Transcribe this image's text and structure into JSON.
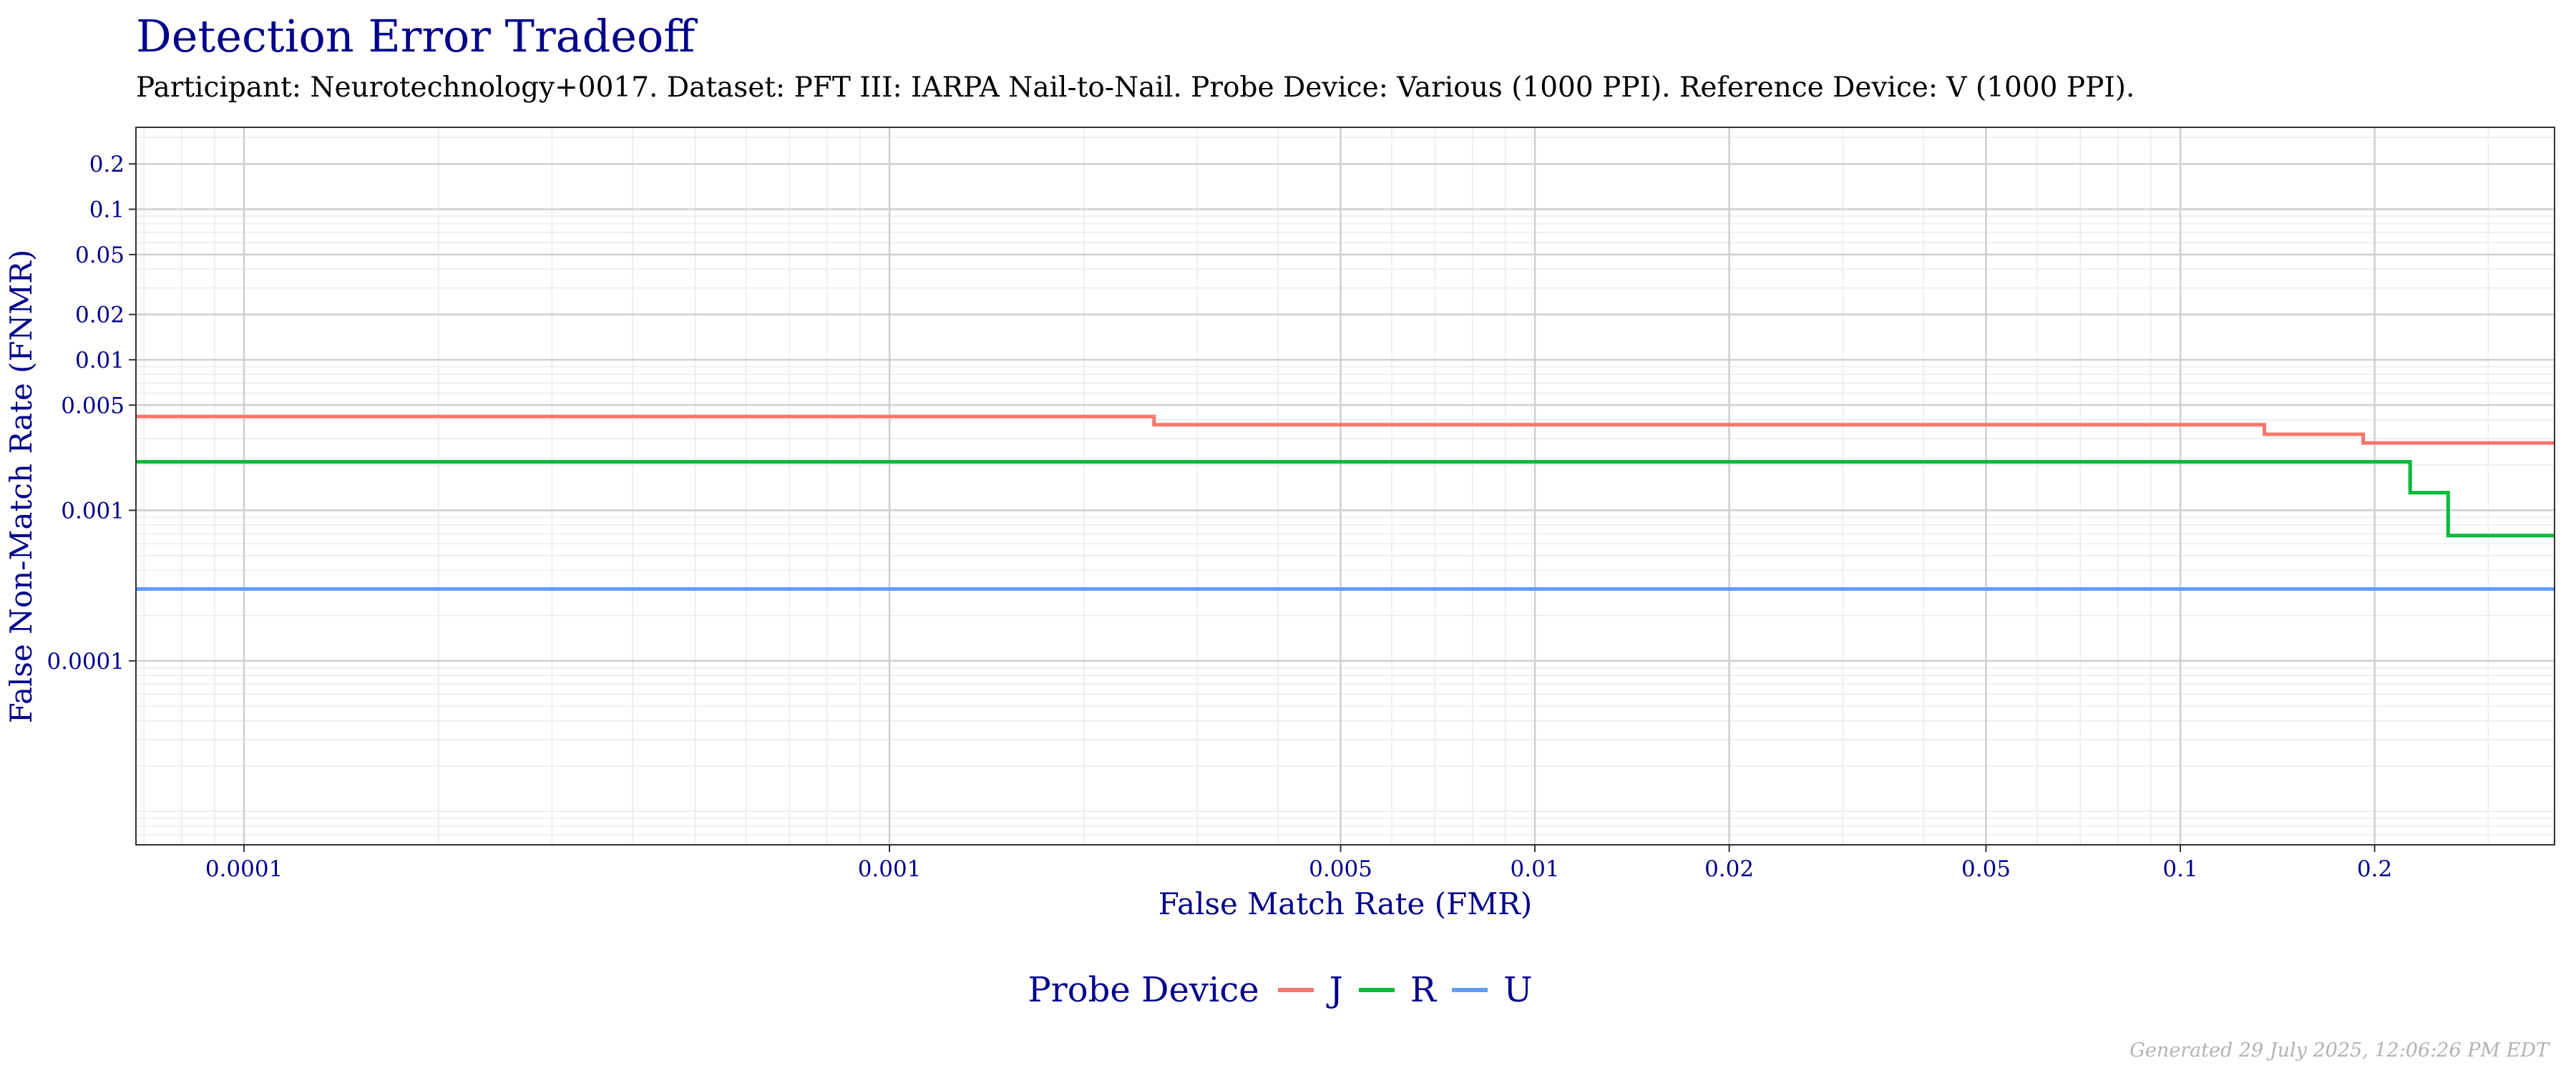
{
  "title": "Detection Error Tradeoff",
  "subtitle": "Participant: Neurotechnology+0017. Dataset: PFT III: IARPA Nail-to-Nail. Probe Device: Various (1000 PPI). Reference Device: V (1000 PPI).",
  "footer": "Generated 29 July 2025, 12:06:26 PM EDT",
  "legend": {
    "title": "Probe Device"
  },
  "chart_data": {
    "type": "line",
    "title": "Detection Error Tradeoff",
    "xlabel": "False Match Rate (FMR)",
    "ylabel": "False Non-Match Rate (FNMR)",
    "x_scale": "log",
    "y_scale": "log",
    "xlim": [
      6.8e-05,
      0.38
    ],
    "ylim": [
      6e-06,
      0.35
    ],
    "x_ticks": [
      {
        "value": 0.0001,
        "label": "0.0001"
      },
      {
        "value": 0.001,
        "label": "0.001"
      },
      {
        "value": 0.005,
        "label": "0.005"
      },
      {
        "value": 0.01,
        "label": "0.01"
      },
      {
        "value": 0.02,
        "label": "0.02"
      },
      {
        "value": 0.05,
        "label": "0.05"
      },
      {
        "value": 0.1,
        "label": "0.1"
      },
      {
        "value": 0.2,
        "label": "0.2"
      }
    ],
    "y_ticks": [
      {
        "value": 0.0001,
        "label": "0.0001"
      },
      {
        "value": 0.001,
        "label": "0.001"
      },
      {
        "value": 0.005,
        "label": "0.005"
      },
      {
        "value": 0.01,
        "label": "0.01"
      },
      {
        "value": 0.02,
        "label": "0.02"
      },
      {
        "value": 0.05,
        "label": "0.05"
      },
      {
        "value": 0.1,
        "label": "0.1"
      },
      {
        "value": 0.2,
        "label": "0.2"
      }
    ],
    "grid": true,
    "legend_position": "bottom",
    "series": [
      {
        "name": "J",
        "color": "#f8766d",
        "x": [
          6.8e-05,
          0.00257,
          0.00257,
          0.135,
          0.135,
          0.192,
          0.192,
          0.38
        ],
        "y": [
          0.0042,
          0.0042,
          0.0037,
          0.0037,
          0.0032,
          0.0032,
          0.0028,
          0.0028
        ]
      },
      {
        "name": "R",
        "color": "#00ba38",
        "x": [
          6.8e-05,
          0.227,
          0.227,
          0.26,
          0.26,
          0.38
        ],
        "y": [
          0.0021,
          0.0021,
          0.00131,
          0.00131,
          0.00068,
          0.00068
        ]
      },
      {
        "name": "U",
        "color": "#619cff",
        "x": [
          6.8e-05,
          0.38
        ],
        "y": [
          0.0003,
          0.0003
        ]
      }
    ]
  }
}
